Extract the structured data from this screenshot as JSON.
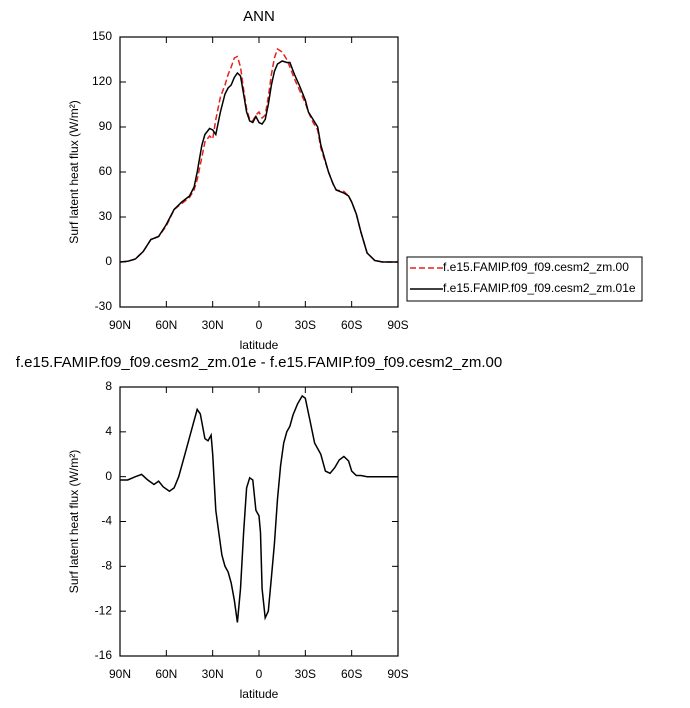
{
  "chart_data": [
    {
      "type": "line",
      "title": "ANN",
      "xlabel": "latitude",
      "ylabel": "Surf latent heat flux (W/m²)",
      "xlim": [
        90,
        -90
      ],
      "xticks": [
        {
          "value": 90,
          "label": "90N"
        },
        {
          "value": 60,
          "label": "60N"
        },
        {
          "value": 30,
          "label": "30N"
        },
        0,
        {
          "value": -30,
          "label": "30S"
        },
        {
          "value": -60,
          "label": "60S"
        },
        {
          "value": -90,
          "label": "90S"
        }
      ],
      "ylim": [
        -30,
        150
      ],
      "yticks": [
        -30,
        0,
        30,
        60,
        90,
        120,
        150
      ],
      "legend": "outside-right",
      "x": [
        90,
        85,
        80,
        75,
        70,
        65,
        60,
        55,
        50,
        45,
        42,
        40,
        37,
        35,
        32,
        30,
        28,
        25,
        22,
        20,
        18,
        16,
        14,
        12,
        10,
        8,
        6,
        4,
        2,
        0,
        -2,
        -4,
        -6,
        -8,
        -10,
        -12,
        -15,
        -18,
        -20,
        -23,
        -26,
        -30,
        -32,
        -35,
        -38,
        -40,
        -45,
        -48,
        -50,
        -55,
        -58,
        -60,
        -63,
        -66,
        -70,
        -75,
        -80,
        -85,
        -90
      ],
      "series": [
        {
          "name": "f.e15.FAMIP.f09_f09.cesm2_zm.00",
          "color": "#e8201c",
          "dash": true,
          "values": [
            0,
            0.5,
            2,
            7,
            15,
            17,
            24,
            35,
            39,
            43,
            48,
            55,
            70,
            80,
            84,
            82,
            95,
            110,
            118,
            125,
            130,
            136,
            137,
            130,
            115,
            102,
            95,
            94,
            98,
            100,
            96,
            98,
            110,
            125,
            136,
            142,
            140,
            135,
            130,
            122,
            115,
            106,
            100,
            93,
            88,
            76,
            60,
            52,
            48,
            47,
            44,
            40,
            32,
            20,
            6,
            1,
            0,
            0,
            0
          ]
        },
        {
          "name": "f.e15.FAMIP.f09_f09.cesm2_zm.01e",
          "color": "#000000",
          "dash": false,
          "values": [
            0,
            0.5,
            2,
            7,
            15,
            17,
            25,
            35,
            40,
            44,
            50,
            60,
            78,
            85,
            89,
            88,
            85,
            100,
            112,
            116,
            118,
            123,
            126,
            124,
            112,
            100,
            94,
            93,
            97,
            93,
            92,
            95,
            105,
            118,
            127,
            132,
            134,
            133,
            133,
            125,
            118,
            108,
            100,
            95,
            90,
            78,
            60,
            52,
            48,
            46,
            44,
            40,
            32,
            20,
            6,
            1,
            0,
            0,
            0
          ]
        }
      ]
    },
    {
      "type": "line",
      "title": "f.e15.FAMIP.f09_f09.cesm2_zm.01e - f.e15.FAMIP.f09_f09.cesm2_zm.00",
      "xlabel": "latitude",
      "ylabel": "Surf latent heat flux (W/m²)",
      "xlim": [
        90,
        -90
      ],
      "xticks": [
        {
          "value": 90,
          "label": "90N"
        },
        {
          "value": 60,
          "label": "60N"
        },
        {
          "value": 30,
          "label": "30N"
        },
        0,
        {
          "value": -30,
          "label": "30S"
        },
        {
          "value": -60,
          "label": "60S"
        },
        {
          "value": -90,
          "label": "90S"
        }
      ],
      "ylim": [
        -16,
        8
      ],
      "yticks": [
        -16,
        -12,
        -8,
        -4,
        0,
        4,
        8
      ],
      "x": [
        90,
        85,
        80,
        76,
        72,
        68,
        65,
        62,
        58,
        55,
        52,
        48,
        45,
        42,
        40,
        38,
        35,
        33,
        31,
        30,
        28,
        26,
        24,
        22,
        20,
        18,
        16,
        14,
        12,
        10,
        8,
        6,
        4,
        2,
        0,
        -1,
        -2,
        -4,
        -6,
        -8,
        -10,
        -12,
        -14,
        -16,
        -18,
        -20,
        -22,
        -25,
        -28,
        -30,
        -33,
        -36,
        -40,
        -43,
        -46,
        -49,
        -52,
        -55,
        -58,
        -60,
        -63,
        -66,
        -70,
        -75,
        -80,
        -85,
        -90
      ],
      "series": [
        {
          "color": "#000000",
          "dash": false,
          "values": [
            -0.3,
            -0.3,
            0,
            0.2,
            -0.3,
            -0.7,
            -0.4,
            -0.9,
            -1.3,
            -1,
            0,
            2,
            3.5,
            5,
            6,
            5.6,
            3.4,
            3.2,
            3.7,
            2,
            -3,
            -5,
            -7,
            -8,
            -8.5,
            -9.5,
            -11,
            -13,
            -10,
            -5,
            -1,
            -0.1,
            -0.3,
            -3,
            -3.5,
            -5,
            -10,
            -12.6,
            -12,
            -9,
            -6,
            -2,
            1,
            3,
            4,
            4.5,
            5.5,
            6.5,
            7.2,
            7,
            5,
            3,
            2,
            0.5,
            0.3,
            0.8,
            1.5,
            1.8,
            1.4,
            0.5,
            0.1,
            0.1,
            0,
            0,
            0,
            0,
            0
          ]
        }
      ]
    }
  ]
}
